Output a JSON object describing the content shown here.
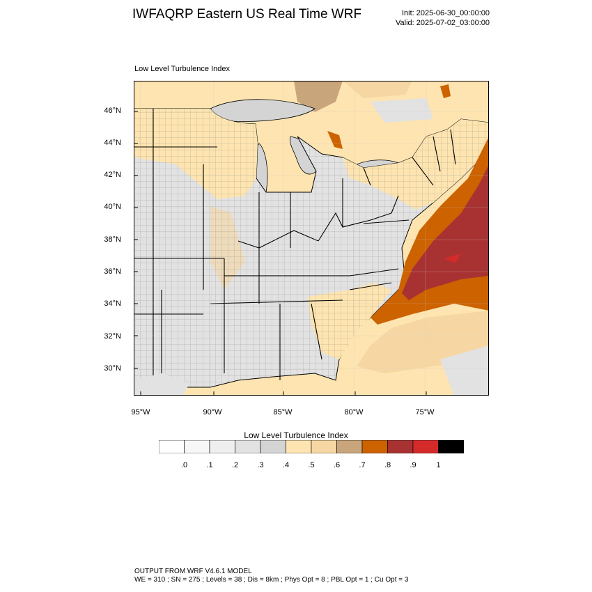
{
  "header": {
    "title": "IWFAQRP Eastern US Real Time WRF",
    "init": "Init: 2025-06-30_00:00:00",
    "valid": "Valid: 2025-07-02_03:00:00"
  },
  "map": {
    "label": "Low Level Turbulence Index",
    "lat_ticks": [
      "46°N",
      "44°N",
      "42°N",
      "40°N",
      "38°N",
      "36°N",
      "34°N",
      "32°N",
      "30°N"
    ],
    "lon_ticks": [
      "95°W",
      "90°W",
      "85°W",
      "80°W",
      "75°W"
    ],
    "colors": {
      "land_light": "#dcdcdc",
      "land_pale": "#f0f0f0",
      "tan": "#fde4b0",
      "tan_dark": "#f6d7a3",
      "brown": "#c9a57c",
      "orange": "#cc6200",
      "red": "#a83232",
      "bright_red": "#d42a2a"
    }
  },
  "colorbar": {
    "title": "Low Level Turbulence Index",
    "colors": [
      "#ffffff",
      "#f7f7f7",
      "#efefef",
      "#e2e2e2",
      "#d4d4d4",
      "#fde4b0",
      "#f6d7a3",
      "#c9a57c",
      "#cc6200",
      "#a83232",
      "#d42a2a",
      "#000000"
    ],
    "labels": [
      ".0",
      ".1",
      ".2",
      ".3",
      ".4",
      ".5",
      ".6",
      ".7",
      ".8",
      ".9",
      "1"
    ]
  },
  "footer": {
    "line1": "OUTPUT FROM WRF V4.6.1 MODEL",
    "line2": "WE = 310 ; SN = 275 ; Levels = 38 ; Dis = 8km ; Phys Opt = 8 ; PBL Opt = 1 ; Cu Opt = 3"
  }
}
